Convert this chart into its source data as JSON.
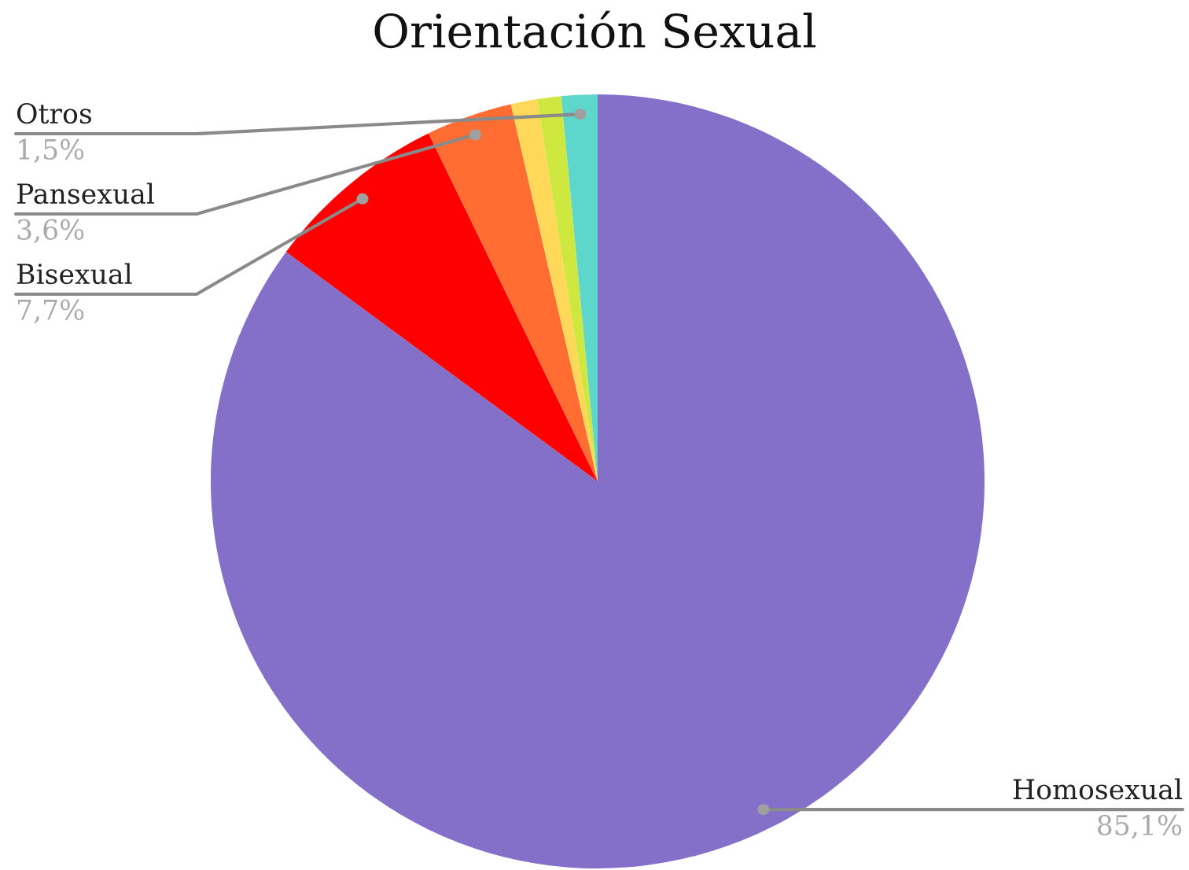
{
  "chart_data": {
    "type": "pie",
    "title": "Orientación Sexual",
    "categories": [
      "Homosexual",
      "Bisexual",
      "Pansexual",
      null,
      null,
      "Otros"
    ],
    "values": [
      85.1,
      7.7,
      3.6,
      1.1,
      1.0,
      1.5
    ],
    "colors": [
      "#8470c8",
      "#ff0000",
      "#ff6d33",
      "#ffd859",
      "#cfe83f",
      "#5dd6cc"
    ],
    "value_labels": [
      "85,1%",
      "7,7%",
      "3,6%",
      null,
      null,
      "1,5%"
    ]
  }
}
